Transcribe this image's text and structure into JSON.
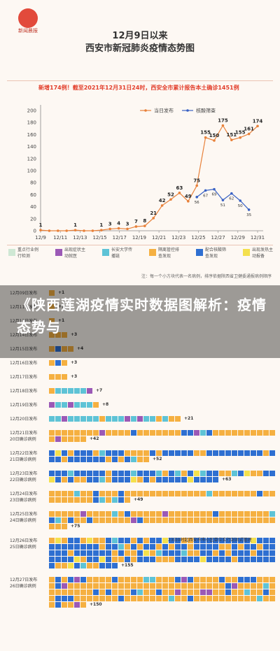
{
  "logo": {
    "text": "新闻晨报"
  },
  "title": {
    "line1": "12月9日以来",
    "line2": "西安市新冠肺炎疫情态势图"
  },
  "banner": "新增174例！截至2021年12月31日24时，西安全市累计报告本土确诊1451例",
  "headline": "《陕西莲湖疫情实时数据图解析：疫情态势与",
  "chart_data": {
    "type": "line",
    "title": "",
    "xlabel": "",
    "ylabel": "",
    "ylim": [
      0,
      200
    ],
    "yticks": [
      0,
      20,
      40,
      60,
      80,
      100,
      120,
      140,
      160,
      180,
      200
    ],
    "x_tick_labels": [
      "12/9",
      "12/11",
      "12/13",
      "12/15",
      "12/17",
      "12/19",
      "12/21",
      "12/23",
      "12/25",
      "12/27",
      "12/29",
      "12/31"
    ],
    "x_start_label": "12/9",
    "legend": "top",
    "grid": false,
    "series": [
      {
        "name": "当日发布",
        "color": "#e8813a",
        "points": [
          [
            0,
            1
          ],
          [
            1,
            0
          ],
          [
            2,
            0
          ],
          [
            3,
            0
          ],
          [
            4,
            1
          ],
          [
            5,
            0
          ],
          [
            6,
            0
          ],
          [
            7,
            1
          ],
          [
            8,
            3
          ],
          [
            9,
            4
          ],
          [
            10,
            3
          ],
          [
            11,
            7
          ],
          [
            12,
            8
          ],
          [
            13,
            21
          ],
          [
            14,
            42
          ],
          [
            15,
            52
          ],
          [
            16,
            63
          ],
          [
            17,
            49
          ],
          [
            18,
            75
          ],
          [
            19,
            155
          ],
          [
            20,
            150
          ],
          [
            21,
            175
          ],
          [
            22,
            151
          ],
          [
            23,
            155
          ],
          [
            24,
            161
          ],
          [
            25,
            174
          ]
        ],
        "labels": [
          [
            0,
            1
          ],
          [
            4,
            1
          ],
          [
            7,
            1
          ],
          [
            8,
            3
          ],
          [
            9,
            4
          ],
          [
            10,
            3
          ],
          [
            11,
            7
          ],
          [
            12,
            8
          ],
          [
            13,
            21
          ],
          [
            14,
            42
          ],
          [
            15,
            52
          ],
          [
            16,
            63
          ],
          [
            17,
            49
          ],
          [
            18,
            75
          ],
          [
            19,
            155
          ],
          [
            20,
            150
          ],
          [
            21,
            175
          ],
          [
            22,
            151
          ],
          [
            23,
            155
          ],
          [
            24,
            161
          ],
          [
            25,
            174
          ]
        ]
      },
      {
        "name": "核酸筛查",
        "color": "#3a62c4",
        "points": [
          [
            18,
            56
          ],
          [
            19,
            67
          ],
          [
            20,
            69
          ],
          [
            21,
            51
          ],
          [
            22,
            62
          ],
          [
            23,
            50
          ],
          [
            24,
            35
          ]
        ],
        "labels": [
          [
            18,
            56
          ],
          [
            19,
            67
          ],
          [
            20,
            69
          ],
          [
            21,
            51
          ],
          [
            22,
            62
          ],
          [
            23,
            50
          ],
          [
            24,
            35
          ]
        ]
      }
    ]
  },
  "legend_categories": [
    {
      "label": "重点行业例行检测",
      "color": "#cfe8d4"
    },
    {
      "label": "出现症状主动就医",
      "color": "#9b59b6"
    },
    {
      "label": "长安大学传播链",
      "color": "#5ec3d6"
    },
    {
      "label": "隔离管控排查发现",
      "color": "#f5b041"
    },
    {
      "label": "配合核酸筛查发现",
      "color": "#2e6fd1"
    },
    {
      "label": "出现发热主动报备",
      "color": "#f4e04d"
    }
  ],
  "note": "注：每一个小方块代表一名病例，排序依据陕西省卫健委通报病例顺序",
  "daily_rows": [
    {
      "label": "12月09日发布",
      "sub": "",
      "plus": "+1",
      "n": 1,
      "mix": "o"
    },
    {
      "label": "12月11日发布",
      "sub": "",
      "plus": "+1",
      "n": 1,
      "mix": "o"
    },
    {
      "label": "12月13日发布",
      "sub": "",
      "plus": "+1",
      "n": 1,
      "mix": "o"
    },
    {
      "label": "12月14日发布",
      "sub": "",
      "plus": "+3",
      "n": 3,
      "mix": "o"
    },
    {
      "label": "12月15日发布",
      "sub": "",
      "plus": "+4",
      "n": 4,
      "mix": "o"
    },
    {
      "label": "12月16日发布",
      "sub": "",
      "plus": "+3",
      "n": 3,
      "mix": "o"
    },
    {
      "label": "12月17日发布",
      "sub": "",
      "plus": "+3",
      "n": 3,
      "mix": "o"
    },
    {
      "label": "12月18日发布",
      "sub": "",
      "plus": "+7",
      "n": 7,
      "mix": "c"
    },
    {
      "label": "12月19日发布",
      "sub": "",
      "plus": "+8",
      "n": 8,
      "mix": "c"
    },
    {
      "label": "12月20日发布",
      "sub": "",
      "plus": "+21",
      "n": 21,
      "mix": "c"
    },
    {
      "label": "12月21日发布",
      "sub": "20日确诊病例",
      "plus": "+42",
      "n": 42,
      "mix": "o"
    },
    {
      "label": "12月22日发布",
      "sub": "21日确诊病例",
      "plus": "+52",
      "n": 52,
      "mix": "b"
    },
    {
      "label": "12月23日发布",
      "sub": "22日确诊病例",
      "plus": "+63",
      "n": 63,
      "mix": "b"
    },
    {
      "label": "12月24日发布",
      "sub": "23日确诊病例",
      "plus": "+49",
      "n": 49,
      "mix": "o"
    },
    {
      "label": "12月25日发布",
      "sub": "24日确诊病例",
      "plus": "+75",
      "n": 75,
      "mix": "o"
    },
    {
      "label": "12月26日发布",
      "sub": "25日确诊病例",
      "plus": "+155",
      "n": 155,
      "mix": "b"
    },
    {
      "label": "12月27日发布",
      "sub": "26日确诊病例",
      "plus": "+150",
      "n": 150,
      "mix": "o"
    }
  ],
  "footnote": "23日0时起西安市市小区单位实行封闭式管理"
}
